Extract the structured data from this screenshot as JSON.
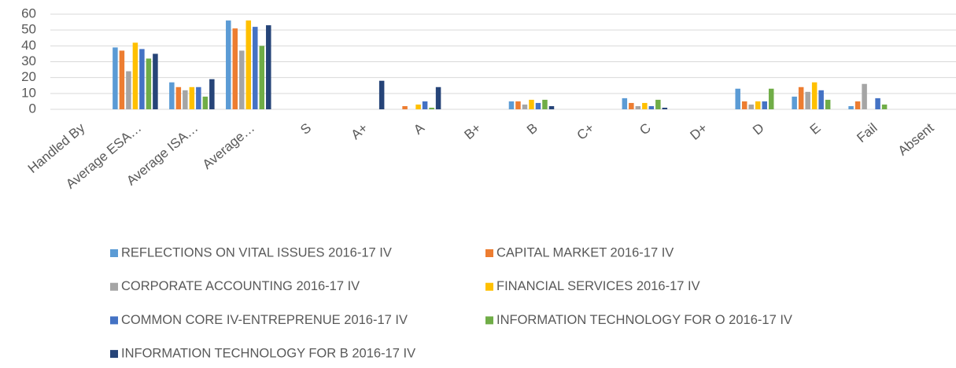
{
  "chart_data": {
    "type": "bar",
    "categories": [
      "Handled By",
      "Average ESA…",
      "Average ISA…",
      "Average…",
      "S",
      "A+",
      "A",
      "B+",
      "B",
      "C+",
      "C",
      "D+",
      "D",
      "E",
      "Fail",
      "Absent"
    ],
    "series": [
      {
        "name": "REFLECTIONS ON VITAL ISSUES 2016-17 IV",
        "color": "#5b9bd5",
        "values": [
          null,
          39,
          17,
          56,
          0,
          0,
          0,
          0,
          5,
          0,
          7,
          0,
          13,
          8,
          2,
          0
        ]
      },
      {
        "name": "CAPITAL MARKET 2016-17 IV",
        "color": "#ed7d31",
        "values": [
          null,
          37,
          14,
          51,
          0,
          0,
          2,
          0,
          5,
          0,
          4,
          0,
          5,
          14,
          5,
          0
        ]
      },
      {
        "name": "CORPORATE ACCOUNTING 2016-17 IV",
        "color": "#a5a5a5",
        "values": [
          null,
          24,
          12,
          37,
          0,
          0,
          0,
          0,
          3,
          0,
          2,
          0,
          3,
          11,
          16,
          0
        ]
      },
      {
        "name": "FINANCIAL SERVICES 2016-17 IV",
        "color": "#ffc000",
        "values": [
          null,
          42,
          14,
          56,
          0,
          0,
          3,
          0,
          6,
          0,
          4,
          0,
          5,
          17,
          0,
          0
        ]
      },
      {
        "name": "COMMON CORE IV-ENTREPRENUE 2016-17 IV",
        "color": "#4472c4",
        "values": [
          null,
          38,
          14,
          52,
          0,
          0,
          5,
          0,
          4,
          0,
          2,
          0,
          5,
          12,
          7,
          0
        ]
      },
      {
        "name": "INFORMATION TECHNOLOGY FOR O 2016-17 IV",
        "color": "#70ad47",
        "values": [
          null,
          32,
          8,
          40,
          0,
          0,
          1,
          0,
          6,
          0,
          6,
          0,
          13,
          6,
          3,
          0
        ]
      },
      {
        "name": "INFORMATION TECHNOLOGY FOR B 2016-17 IV",
        "color": "#264478",
        "values": [
          null,
          35,
          19,
          53,
          0,
          18,
          14,
          0,
          2,
          0,
          1,
          0,
          0,
          0,
          0,
          0
        ]
      }
    ],
    "ylim": [
      0,
      60
    ],
    "yticks": [
      0,
      10,
      20,
      30,
      40,
      50,
      60
    ],
    "grid": true
  }
}
